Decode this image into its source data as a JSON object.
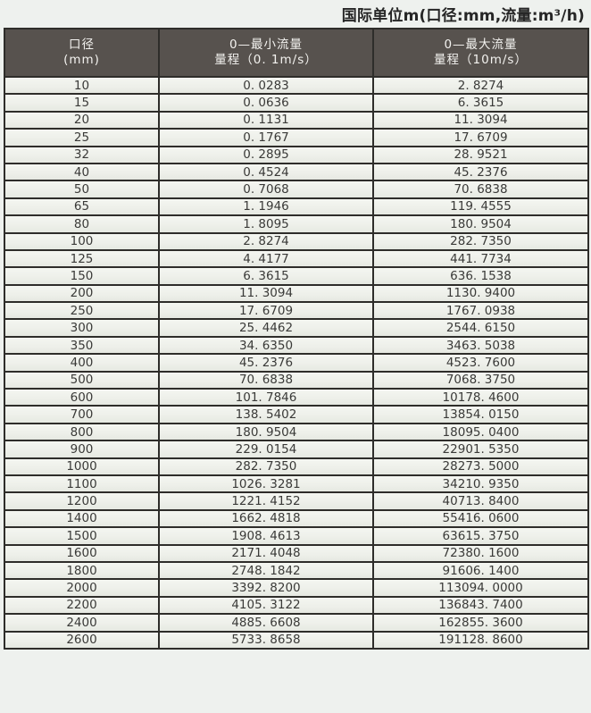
{
  "caption": {
    "unit_note": "国际单位m(口径:mm,流量:m³/h)"
  },
  "chart_data": {
    "type": "table",
    "title": "国际单位m(口径:mm,流量:m³/h)",
    "columns": [
      {
        "title": "口径",
        "subtitle": "(mm)"
      },
      {
        "title": "0—最小流量",
        "subtitle": "量程（0. 1m/s）"
      },
      {
        "title": "0—最大流量",
        "subtitle": "量程（10m/s）"
      }
    ],
    "column_keys": [
      "diameter_mm",
      "min_flow_range",
      "max_flow_range"
    ],
    "rows": [
      [
        "10",
        "0.0283",
        "2.8274"
      ],
      [
        "15",
        "0.0636",
        "6.3615"
      ],
      [
        "20",
        "0.1131",
        "11.3094"
      ],
      [
        "25",
        "0.1767",
        "17.6709"
      ],
      [
        "32",
        "0.2895",
        "28.9521"
      ],
      [
        "40",
        "0.4524",
        "45.2376"
      ],
      [
        "50",
        "0.7068",
        "70.6838"
      ],
      [
        "65",
        "1.1946",
        "119.4555"
      ],
      [
        "80",
        "1.8095",
        "180.9504"
      ],
      [
        "100",
        "2.8274",
        "282.7350"
      ],
      [
        "125",
        "4.4177",
        "441.7734"
      ],
      [
        "150",
        "6.3615",
        "636.1538"
      ],
      [
        "200",
        "11.3094",
        "1130.9400"
      ],
      [
        "250",
        "17.6709",
        "1767.0938"
      ],
      [
        "300",
        "25.4462",
        "2544.6150"
      ],
      [
        "350",
        "34.6350",
        "3463.5038"
      ],
      [
        "400",
        "45.2376",
        "4523.7600"
      ],
      [
        "500",
        "70.6838",
        "7068.3750"
      ],
      [
        "600",
        "101.7846",
        "10178.4600"
      ],
      [
        "700",
        "138.5402",
        "13854.0150"
      ],
      [
        "800",
        "180.9504",
        "18095.0400"
      ],
      [
        "900",
        "229.0154",
        "22901.5350"
      ],
      [
        "1000",
        "282.7350",
        "28273.5000"
      ],
      [
        "1100",
        "1026.3281",
        "34210.9350"
      ],
      [
        "1200",
        "1221.4152",
        "40713.8400"
      ],
      [
        "1400",
        "1662.4818",
        "55416.0600"
      ],
      [
        "1500",
        "1908.4613",
        "63615.3750"
      ],
      [
        "1600",
        "2171.4048",
        "72380.1600"
      ],
      [
        "1800",
        "2748.1842",
        "91606.1400"
      ],
      [
        "2000",
        "3392.8200",
        "113094.0000"
      ],
      [
        "2200",
        "4105.3122",
        "136843.7400"
      ],
      [
        "2400",
        "4885.6608",
        "162855.3600"
      ],
      [
        "2600",
        "5733.8658",
        "191128.8600"
      ]
    ]
  },
  "colors": {
    "header_bg": "#57524e",
    "header_text": "#f3f2ef",
    "border": "#2e2d2a",
    "page_bg": "#eef1ee",
    "title_text": "#262626"
  }
}
